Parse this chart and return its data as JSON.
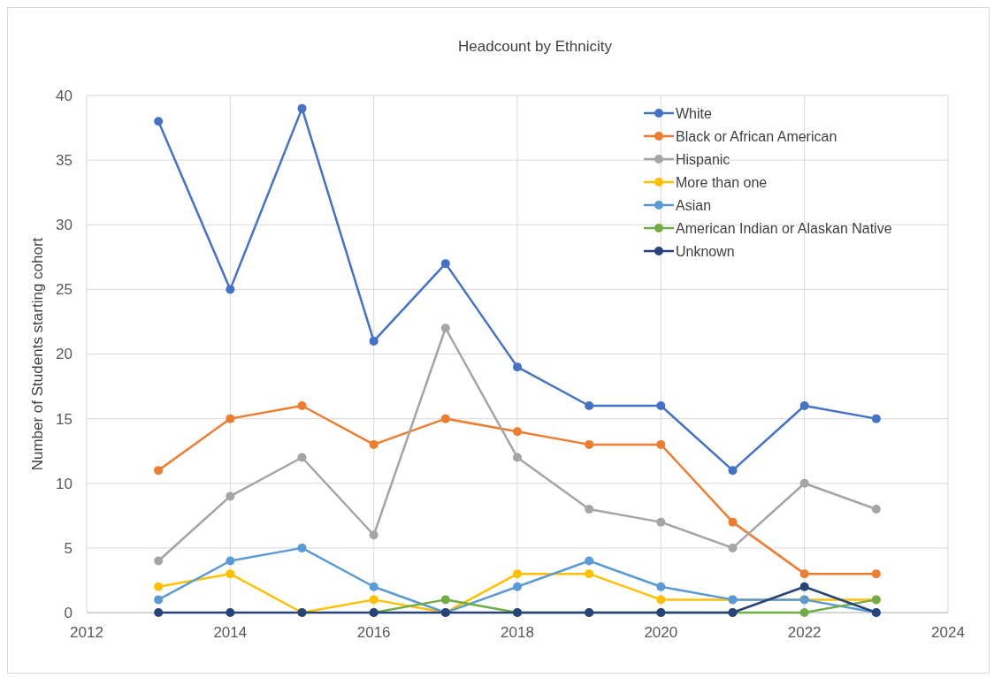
{
  "chart_data": {
    "type": "line",
    "title": "Headcount by Ethnicity",
    "ylabel": "Number of Students starting cohort",
    "x": [
      2013,
      2014,
      2015,
      2016,
      2017,
      2018,
      2019,
      2020,
      2021,
      2022,
      2023
    ],
    "xlim": [
      2012,
      2024
    ],
    "xticks": [
      2012,
      2014,
      2016,
      2018,
      2020,
      2022,
      2024
    ],
    "ylim": [
      0,
      40
    ],
    "yticks": [
      0,
      5,
      10,
      15,
      20,
      25,
      30,
      35,
      40
    ],
    "grid": true,
    "legend": "top right",
    "marker": "circle",
    "line_style": "solid",
    "series": [
      {
        "name": "White",
        "color": "#4472c4",
        "values": [
          38,
          25,
          39,
          21,
          27,
          19,
          16,
          16,
          11,
          16,
          15
        ]
      },
      {
        "name": "Black or African American",
        "color": "#ed7d31",
        "values": [
          11,
          15,
          16,
          13,
          15,
          14,
          13,
          13,
          7,
          3,
          3
        ]
      },
      {
        "name": "Hispanic",
        "color": "#a5a5a5",
        "values": [
          4,
          9,
          12,
          6,
          22,
          12,
          8,
          7,
          5,
          10,
          8
        ]
      },
      {
        "name": "More than one",
        "color": "#ffc000",
        "values": [
          2,
          3,
          0,
          1,
          0,
          3,
          3,
          1,
          1,
          1,
          1
        ]
      },
      {
        "name": "Asian",
        "color": "#5b9bd5",
        "values": [
          1,
          4,
          5,
          2,
          0,
          2,
          4,
          2,
          1,
          1,
          0
        ]
      },
      {
        "name": "American Indian or Alaskan Native",
        "color": "#70ad47",
        "values": [
          null,
          null,
          null,
          0,
          1,
          0,
          0,
          0,
          0,
          0,
          1
        ]
      },
      {
        "name": "Unknown",
        "color": "#264478",
        "values": [
          0,
          0,
          0,
          0,
          0,
          0,
          0,
          0,
          0,
          2,
          0
        ]
      }
    ]
  }
}
